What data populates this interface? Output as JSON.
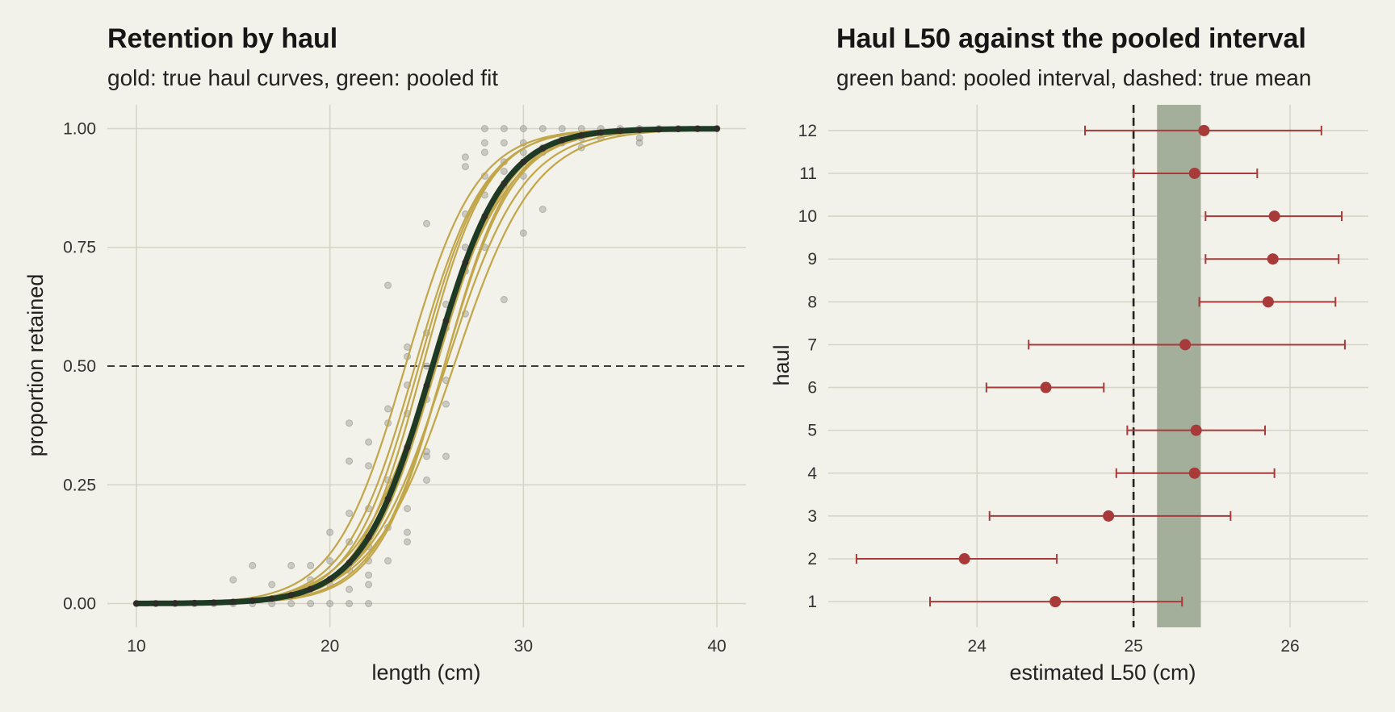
{
  "chart_data": [
    {
      "type": "line",
      "title": "Retention by haul",
      "subtitle": "gold: true haul curves, green: pooled fit",
      "xlabel": "length (cm)",
      "ylabel": "proportion retained",
      "xlim": [
        8.5,
        41.5
      ],
      "ylim": [
        -0.05,
        1.05
      ],
      "xticks": [
        10,
        20,
        30,
        40
      ],
      "yticks": [
        0.0,
        0.25,
        0.5,
        0.75,
        1.0
      ],
      "ytick_labels": [
        "0.00",
        "0.25",
        "0.50",
        "0.75",
        "1.00"
      ],
      "reference_line": 0.5,
      "grid": true,
      "legend": "none",
      "colors": {
        "haul_curves": "#c2a64a",
        "pooled_fit": "#1e3a24",
        "observations": "#9a9a92",
        "reference": "#222222"
      },
      "pooled_fit": {
        "l50": 25.3,
        "slope": 0.55
      },
      "haul_curves": [
        {
          "l50": 24.6,
          "slope": 0.58
        },
        {
          "l50": 23.9,
          "slope": 0.55
        },
        {
          "l50": 24.8,
          "slope": 0.6
        },
        {
          "l50": 25.4,
          "slope": 0.57
        },
        {
          "l50": 25.4,
          "slope": 0.55
        },
        {
          "l50": 24.4,
          "slope": 0.56
        },
        {
          "l50": 25.3,
          "slope": 0.5
        },
        {
          "l50": 25.9,
          "slope": 0.56
        },
        {
          "l50": 25.9,
          "slope": 0.58
        },
        {
          "l50": 26.0,
          "slope": 0.5
        },
        {
          "l50": 25.5,
          "slope": 0.55
        },
        {
          "l50": 26.4,
          "slope": 0.48
        }
      ],
      "observations": [
        [
          15,
          0.05
        ],
        [
          16,
          0.08
        ],
        [
          17,
          0.04
        ],
        [
          18,
          0.08
        ],
        [
          19,
          0.08
        ],
        [
          19,
          0.05
        ],
        [
          20,
          0.15
        ],
        [
          20,
          0.09
        ],
        [
          20,
          0.04
        ],
        [
          21,
          0.38
        ],
        [
          21,
          0.3
        ],
        [
          21,
          0.19
        ],
        [
          21,
          0.13
        ],
        [
          21,
          0.07
        ],
        [
          21,
          0.03
        ],
        [
          22,
          0.34
        ],
        [
          22,
          0.29
        ],
        [
          22,
          0.2
        ],
        [
          22,
          0.12
        ],
        [
          22,
          0.09
        ],
        [
          22,
          0.06
        ],
        [
          22,
          0.04
        ],
        [
          23,
          0.67
        ],
        [
          23,
          0.41
        ],
        [
          23,
          0.38
        ],
        [
          23,
          0.26
        ],
        [
          23,
          0.22
        ],
        [
          23,
          0.16
        ],
        [
          23,
          0.09
        ],
        [
          24,
          0.54
        ],
        [
          24,
          0.52
        ],
        [
          24,
          0.46
        ],
        [
          24,
          0.4
        ],
        [
          24,
          0.33
        ],
        [
          24,
          0.2
        ],
        [
          24,
          0.15
        ],
        [
          24,
          0.13
        ],
        [
          25,
          0.8
        ],
        [
          25,
          0.57
        ],
        [
          25,
          0.5
        ],
        [
          25,
          0.43
        ],
        [
          25,
          0.32
        ],
        [
          25,
          0.31
        ],
        [
          25,
          0.26
        ],
        [
          26,
          0.63
        ],
        [
          26,
          0.58
        ],
        [
          26,
          0.47
        ],
        [
          26,
          0.42
        ],
        [
          26,
          0.31
        ],
        [
          27,
          0.94
        ],
        [
          27,
          0.92
        ],
        [
          27,
          0.82
        ],
        [
          27,
          0.75
        ],
        [
          27,
          0.7
        ],
        [
          27,
          0.61
        ],
        [
          28,
          1.0
        ],
        [
          28,
          0.97
        ],
        [
          28,
          0.95
        ],
        [
          28,
          0.9
        ],
        [
          28,
          0.86
        ],
        [
          28,
          0.75
        ],
        [
          29,
          1.0
        ],
        [
          29,
          0.97
        ],
        [
          29,
          0.93
        ],
        [
          29,
          0.91
        ],
        [
          29,
          0.88
        ],
        [
          29,
          0.64
        ],
        [
          30,
          1.0
        ],
        [
          30,
          0.97
        ],
        [
          30,
          0.95
        ],
        [
          30,
          0.9
        ],
        [
          30,
          0.78
        ],
        [
          31,
          1.0
        ],
        [
          31,
          0.96
        ],
        [
          31,
          0.95
        ],
        [
          31,
          0.83
        ],
        [
          32,
          1.0
        ],
        [
          32,
          0.98
        ],
        [
          32,
          0.97
        ],
        [
          33,
          1.0
        ],
        [
          33,
          0.98
        ],
        [
          33,
          0.96
        ],
        [
          34,
          1.0
        ],
        [
          34,
          0.98
        ],
        [
          35,
          1.0
        ],
        [
          35,
          0.99
        ],
        [
          36,
          1.0
        ],
        [
          36,
          0.98
        ],
        [
          36,
          0.97
        ],
        [
          37,
          1.0
        ],
        [
          38,
          1.0
        ],
        [
          39,
          1.0
        ],
        [
          40,
          1.0
        ],
        [
          10,
          0.0
        ],
        [
          11,
          0.0
        ],
        [
          12,
          0.0
        ],
        [
          13,
          0.0
        ],
        [
          14,
          0.0
        ],
        [
          15,
          0.0
        ],
        [
          16,
          0.0
        ],
        [
          17,
          0.0
        ],
        [
          18,
          0.0
        ],
        [
          19,
          0.0
        ],
        [
          20,
          0.0
        ],
        [
          21,
          0.0
        ],
        [
          22,
          0.0
        ]
      ]
    },
    {
      "type": "scatter",
      "title": "Haul L50 against the pooled interval",
      "subtitle": "green band: pooled interval, dashed: true mean",
      "xlabel": "estimated L50 (cm)",
      "ylabel": "haul",
      "xlim": [
        23.05,
        26.5
      ],
      "ylim": [
        0.4,
        12.6
      ],
      "xticks": [
        24,
        25,
        26
      ],
      "grid": true,
      "legend": "none",
      "true_mean": 25.0,
      "pooled_interval": [
        25.15,
        25.43
      ],
      "colors": {
        "points": "#a83a3a",
        "band": "#a3ae9b",
        "reference": "#222222"
      },
      "hauls": [
        {
          "haul": 1,
          "estimate": 24.5,
          "lower": 23.7,
          "upper": 25.31
        },
        {
          "haul": 2,
          "estimate": 23.92,
          "lower": 23.23,
          "upper": 24.51
        },
        {
          "haul": 3,
          "estimate": 24.84,
          "lower": 24.08,
          "upper": 25.62
        },
        {
          "haul": 4,
          "estimate": 25.39,
          "lower": 24.89,
          "upper": 25.9
        },
        {
          "haul": 5,
          "estimate": 25.4,
          "lower": 24.96,
          "upper": 25.84
        },
        {
          "haul": 6,
          "estimate": 24.44,
          "lower": 24.06,
          "upper": 24.81
        },
        {
          "haul": 7,
          "estimate": 25.33,
          "lower": 24.33,
          "upper": 26.35
        },
        {
          "haul": 8,
          "estimate": 25.86,
          "lower": 25.42,
          "upper": 26.29
        },
        {
          "haul": 9,
          "estimate": 25.89,
          "lower": 25.46,
          "upper": 26.31
        },
        {
          "haul": 10,
          "estimate": 25.9,
          "lower": 25.46,
          "upper": 26.33
        },
        {
          "haul": 11,
          "estimate": 25.39,
          "lower": 25.0,
          "upper": 25.79
        },
        {
          "haul": 12,
          "estimate": 25.45,
          "lower": 24.69,
          "upper": 26.2
        }
      ]
    }
  ]
}
